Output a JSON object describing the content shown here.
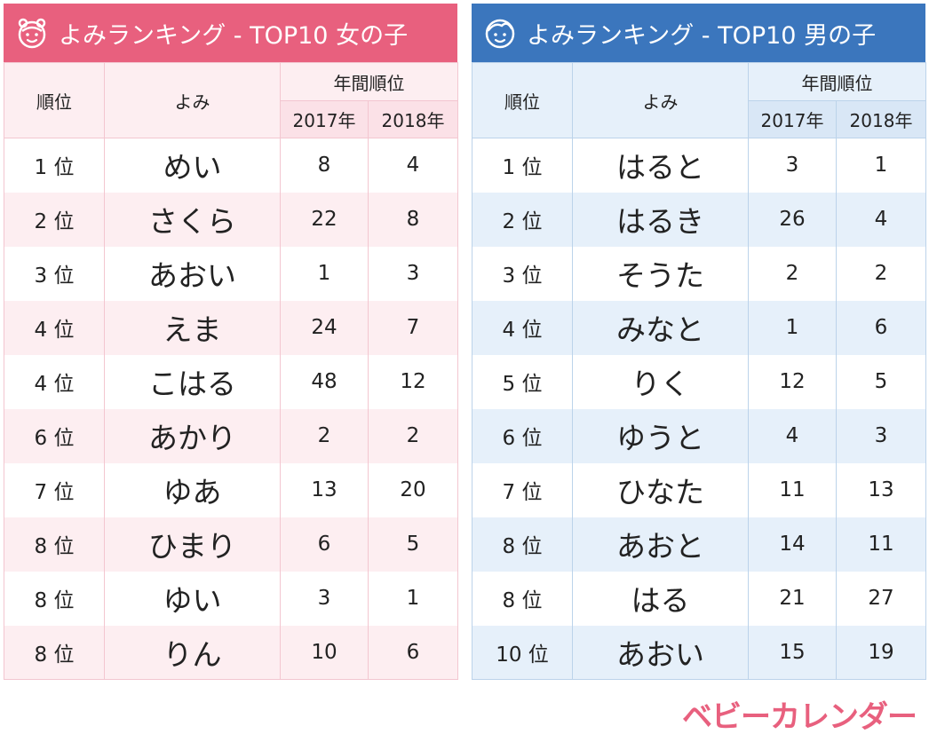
{
  "girls": {
    "title": "よみランキング - TOP10 女の子",
    "icon": "girl-face-icon",
    "accent": "#e8607e",
    "headers": {
      "rank": "順位",
      "yomi": "よみ",
      "annual": "年間順位",
      "y2017": "2017年",
      "y2018": "2018年"
    },
    "rows": [
      {
        "rank": "1 位",
        "yomi": "めい",
        "y2017": "8",
        "y2018": "4"
      },
      {
        "rank": "2 位",
        "yomi": "さくら",
        "y2017": "22",
        "y2018": "8"
      },
      {
        "rank": "3 位",
        "yomi": "あおい",
        "y2017": "1",
        "y2018": "3"
      },
      {
        "rank": "4 位",
        "yomi": "えま",
        "y2017": "24",
        "y2018": "7"
      },
      {
        "rank": "4 位",
        "yomi": "こはる",
        "y2017": "48",
        "y2018": "12"
      },
      {
        "rank": "6 位",
        "yomi": "あかり",
        "y2017": "2",
        "y2018": "2"
      },
      {
        "rank": "7 位",
        "yomi": "ゆあ",
        "y2017": "13",
        "y2018": "20"
      },
      {
        "rank": "8 位",
        "yomi": "ひまり",
        "y2017": "6",
        "y2018": "5"
      },
      {
        "rank": "8 位",
        "yomi": "ゆい",
        "y2017": "3",
        "y2018": "1"
      },
      {
        "rank": "8 位",
        "yomi": "りん",
        "y2017": "10",
        "y2018": "6"
      }
    ]
  },
  "boys": {
    "title": "よみランキング - TOP10 男の子",
    "icon": "boy-face-icon",
    "accent": "#3b76bd",
    "headers": {
      "rank": "順位",
      "yomi": "よみ",
      "annual": "年間順位",
      "y2017": "2017年",
      "y2018": "2018年"
    },
    "rows": [
      {
        "rank": "1 位",
        "yomi": "はると",
        "y2017": "3",
        "y2018": "1"
      },
      {
        "rank": "2 位",
        "yomi": "はるき",
        "y2017": "26",
        "y2018": "4"
      },
      {
        "rank": "3 位",
        "yomi": "そうた",
        "y2017": "2",
        "y2018": "2"
      },
      {
        "rank": "4 位",
        "yomi": "みなと",
        "y2017": "1",
        "y2018": "6"
      },
      {
        "rank": "5 位",
        "yomi": "りく",
        "y2017": "12",
        "y2018": "5"
      },
      {
        "rank": "6 位",
        "yomi": "ゆうと",
        "y2017": "4",
        "y2018": "3"
      },
      {
        "rank": "7 位",
        "yomi": "ひなた",
        "y2017": "11",
        "y2018": "13"
      },
      {
        "rank": "8 位",
        "yomi": "あおと",
        "y2017": "14",
        "y2018": "11"
      },
      {
        "rank": "8 位",
        "yomi": "はる",
        "y2017": "21",
        "y2018": "27"
      },
      {
        "rank": "10 位",
        "yomi": "あおい",
        "y2017": "15",
        "y2018": "19"
      }
    ]
  },
  "logo": {
    "text": "ベビーカレンダー"
  }
}
